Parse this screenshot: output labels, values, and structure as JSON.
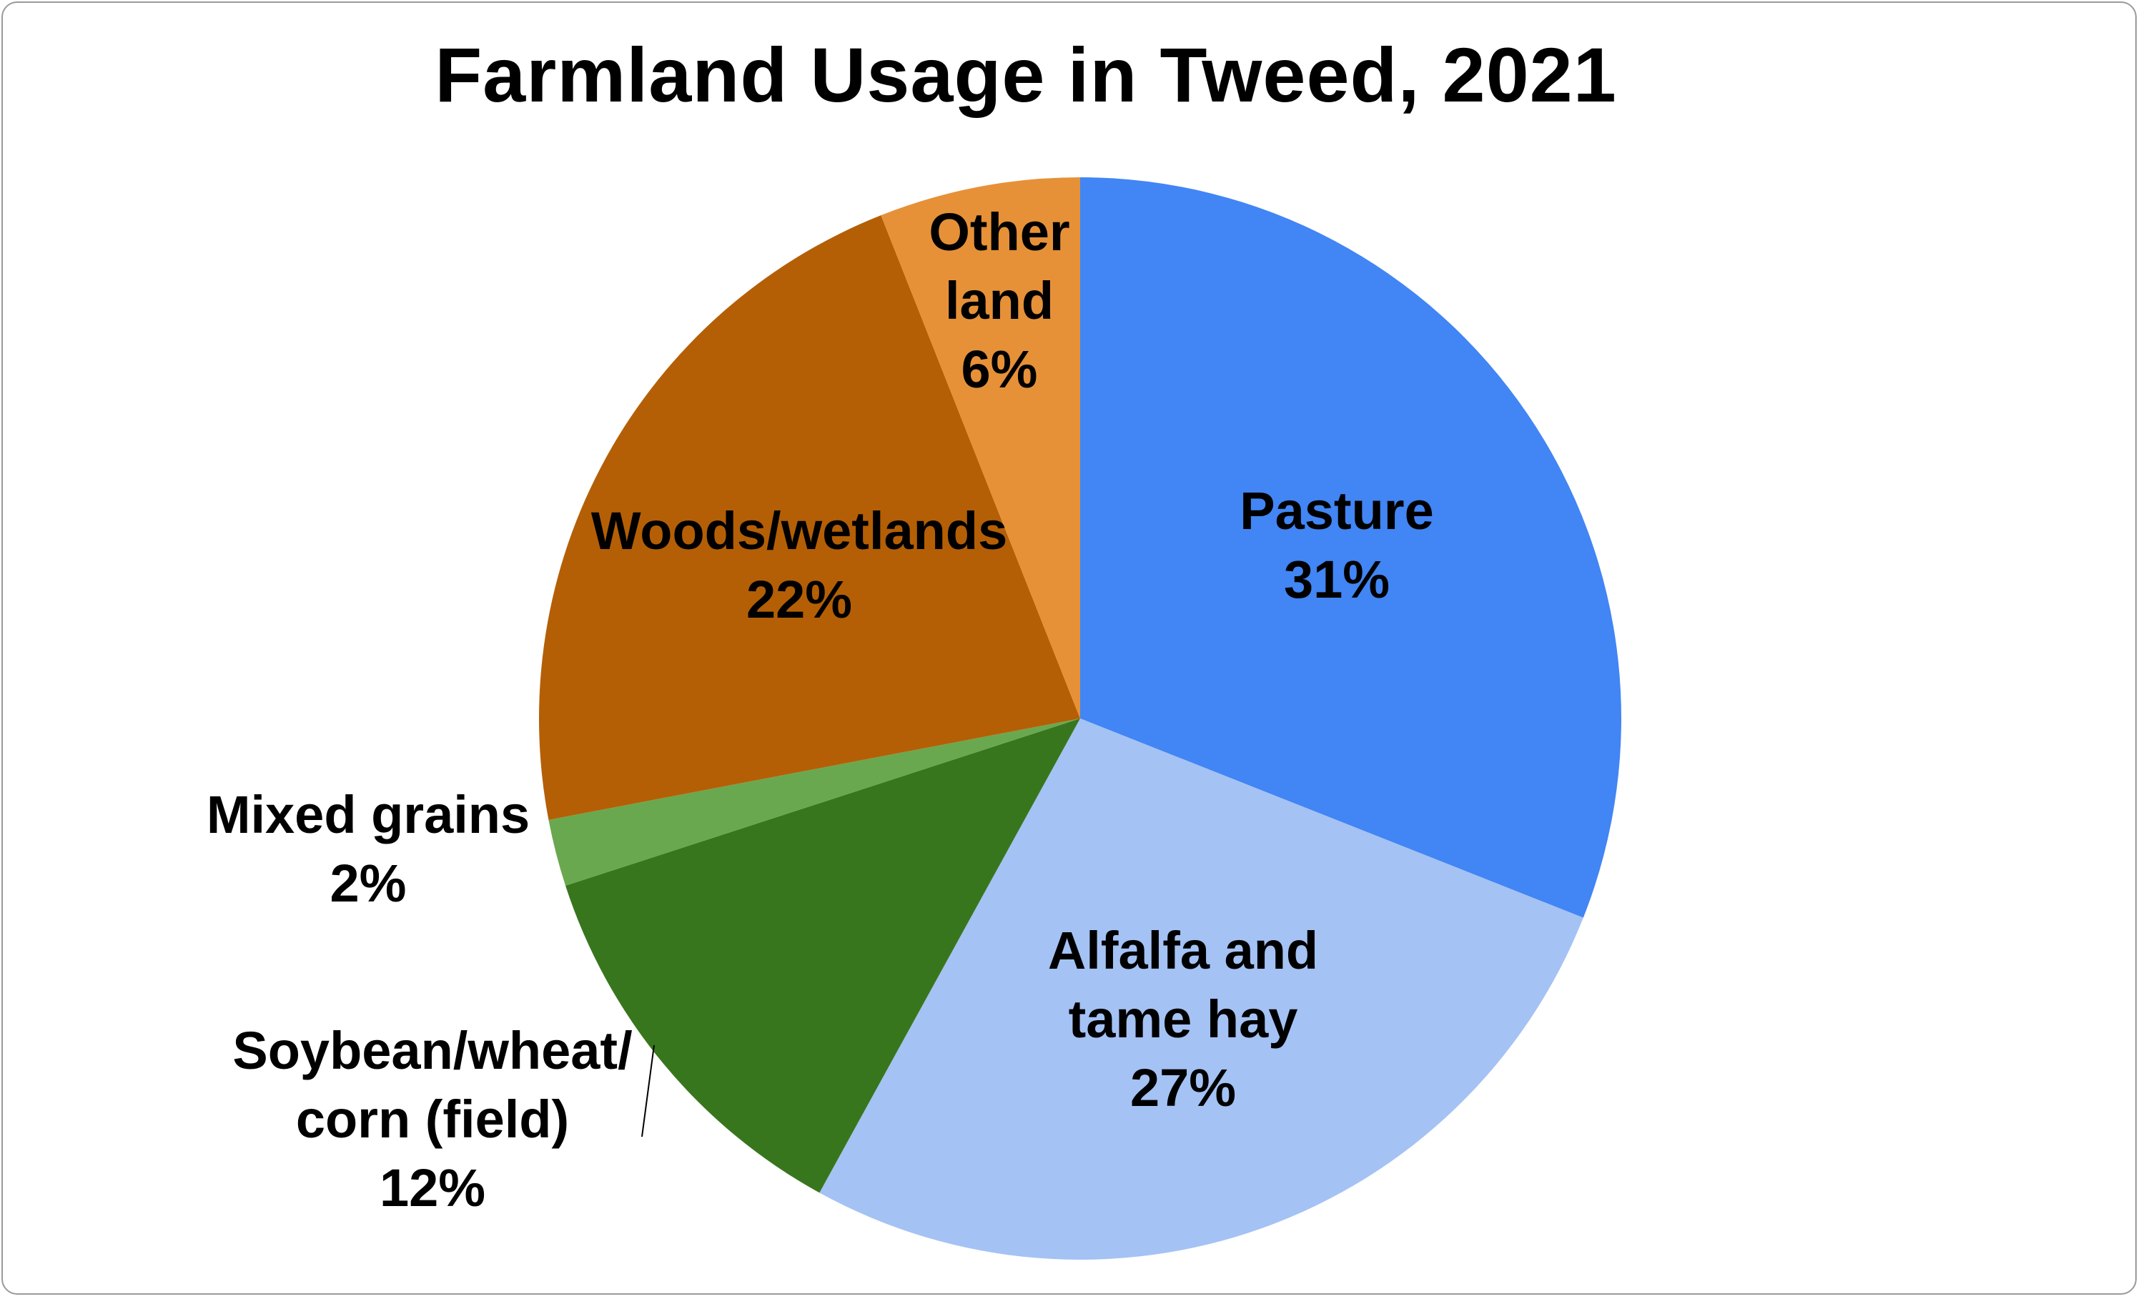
{
  "chart_data": {
    "type": "pie",
    "title": "Farmland Usage in Tweed, 2021",
    "slices": [
      {
        "name": "Pasture",
        "label_lines": [
          "Pasture",
          "31%"
        ],
        "value": 31,
        "color": "#4285F4"
      },
      {
        "name": "Alfalfa and tame hay",
        "label_lines": [
          "Alfalfa and",
          "tame hay",
          "27%"
        ],
        "value": 27,
        "color": "#A4C2F4"
      },
      {
        "name": "Soybean/wheat/corn (field)",
        "label_lines": [
          "Soybean/wheat/",
          "corn (field)",
          "12%"
        ],
        "value": 12,
        "color": "#38761D"
      },
      {
        "name": "Mixed grains",
        "label_lines": [
          "Mixed grains",
          "2%"
        ],
        "value": 2,
        "color": "#6AA84F"
      },
      {
        "name": "Woods/wetlands",
        "label_lines": [
          "Woods/wetlands",
          "22%"
        ],
        "value": 22,
        "color": "#B45F06"
      },
      {
        "name": "Other land",
        "label_lines": [
          "Other",
          "land",
          "6%"
        ],
        "value": 6,
        "color": "#E69138"
      }
    ],
    "start_angle": "12 o'clock",
    "direction": "clockwise",
    "legend": "none (data labels on slices)"
  }
}
